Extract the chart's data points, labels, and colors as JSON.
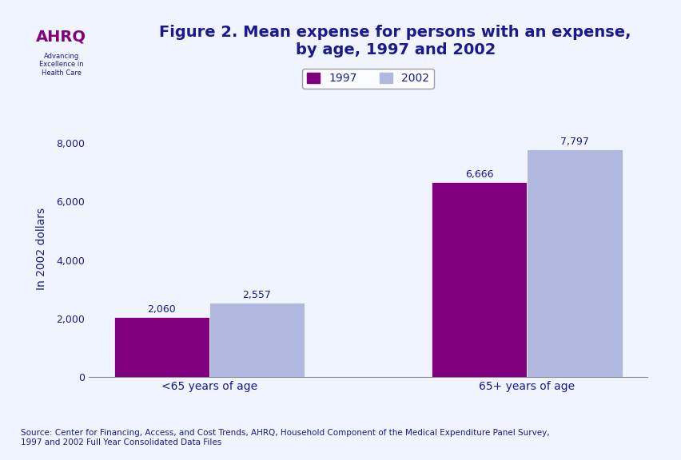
{
  "categories": [
    "<65 years of age",
    "65+ years of age"
  ],
  "values_1997": [
    2060,
    6666
  ],
  "values_2002": [
    2557,
    7797
  ],
  "labels_1997": [
    "2,060",
    "6,666"
  ],
  "labels_2002": [
    "2,557",
    "7,797"
  ],
  "color_1997": "#800080",
  "color_2002": "#b0b8e0",
  "title_line1": "Figure 2. Mean expense for persons with an expense,",
  "title_line2": "by age, 1997 and 2002",
  "ylabel": "In 2002 dollars",
  "ylim": [
    0,
    8800
  ],
  "yticks": [
    0,
    2000,
    4000,
    6000,
    8000
  ],
  "ytick_labels": [
    "0",
    "2,000",
    "4,000",
    "6,000",
    "8,000"
  ],
  "legend_labels": [
    "1997",
    "2002"
  ],
  "source_text": "Source: Center for Financing, Access, and Cost Trends, AHRQ, Household Component of the Medical Expenditure Panel Survey,\n1997 and 2002 Full Year Consolidated Data Files",
  "background_color": "#f0f4ff",
  "header_bg": "#ffffff",
  "bar_width": 0.3,
  "title_color": "#1a1a8c",
  "axis_label_color": "#1a1a8c",
  "tick_label_color": "#1a1a8c",
  "value_label_color": "#1a1a8c",
  "source_color": "#1a1a8c",
  "separator_color": "#1a1a8c"
}
